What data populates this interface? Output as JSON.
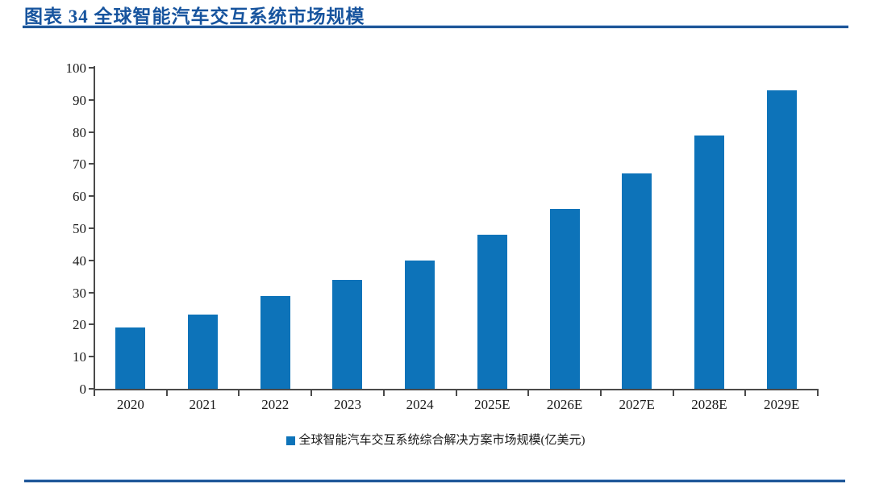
{
  "figure": {
    "title": "图表 34  全球智能汽车交互系统市场规模"
  },
  "chart_data": {
    "type": "bar",
    "title": "全球智能汽车交互系统市场规模",
    "categories": [
      "2020",
      "2021",
      "2022",
      "2023",
      "2024",
      "2025E",
      "2026E",
      "2027E",
      "2028E",
      "2029E"
    ],
    "series": [
      {
        "name": "全球智能汽车交互系统综合解决方案市场规模(亿美元)",
        "values": [
          19,
          23,
          29,
          34,
          40,
          48,
          56,
          67,
          79,
          93
        ]
      }
    ],
    "xlabel": "",
    "ylabel": "",
    "ylim": [
      0,
      100
    ],
    "ytick_step": 10,
    "yticks": [
      0,
      10,
      20,
      30,
      40,
      50,
      60,
      70,
      80,
      90,
      100
    ],
    "grid": false,
    "legend_position": "bottom",
    "bar_color": "#0D73B9"
  },
  "colors": {
    "title_blue": "#17549E",
    "rule_dark_blue": "#1F5799",
    "rule_light_blue": "#A9C4E4",
    "bar_blue": "#0D73B9",
    "axis_gray": "#4A4A4A"
  }
}
